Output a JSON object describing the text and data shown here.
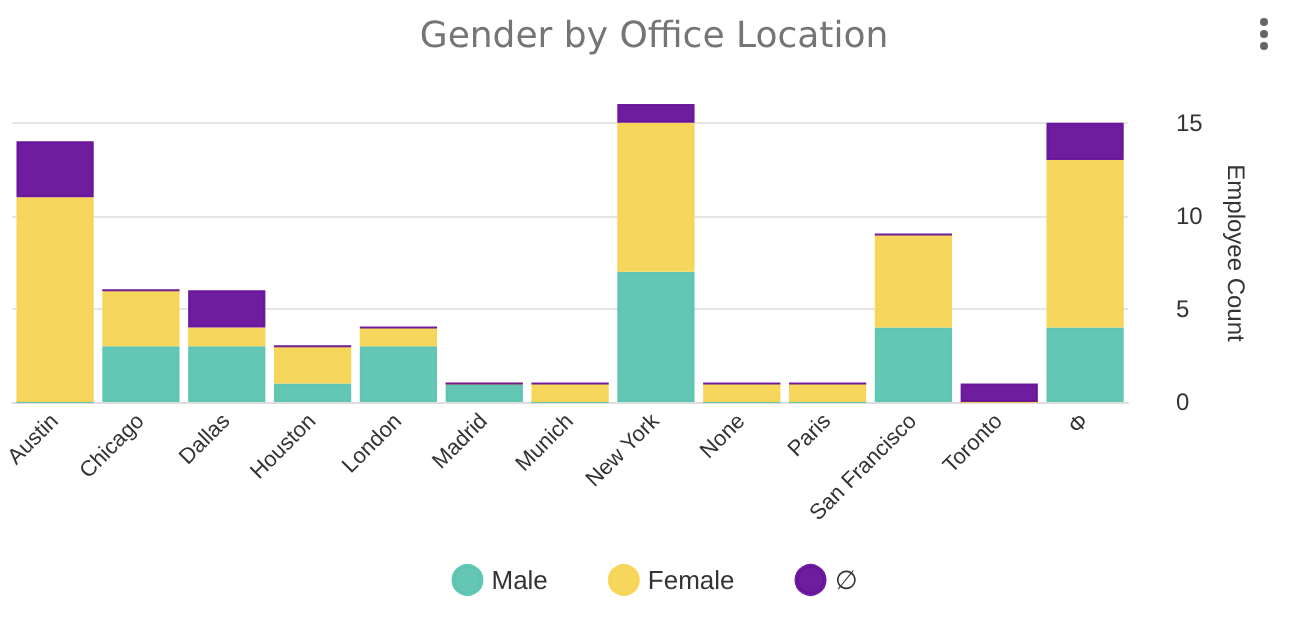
{
  "chart_data": {
    "type": "bar",
    "title": "Gender by Office Location",
    "ylabel": "Employee Count",
    "categories": [
      "Austin",
      "Chicago",
      "Dallas",
      "Houston",
      "London",
      "Madrid",
      "Munich",
      "New York",
      "None",
      "Paris",
      "San Francisco",
      "Toronto",
      "Φ"
    ],
    "series": [
      {
        "name": "Male",
        "color": "#5bc4b0",
        "values": [
          0,
          3,
          3,
          1,
          3,
          1,
          0,
          7,
          0,
          0,
          4,
          0,
          4
        ]
      },
      {
        "name": "Female",
        "color": "#f7d454",
        "values": [
          11,
          3,
          1,
          2,
          1,
          0,
          1,
          8,
          1,
          1,
          5,
          0,
          9
        ]
      },
      {
        "name": "∅",
        "color": "#67119a",
        "values": [
          3,
          0,
          2,
          0,
          0,
          0,
          0,
          1,
          0,
          0,
          0,
          1,
          2
        ]
      }
    ],
    "stacked": true,
    "ylim": [
      0,
      16
    ],
    "yticks": [
      0,
      5,
      10,
      15
    ],
    "grid": "y",
    "legend": "bottom"
  }
}
